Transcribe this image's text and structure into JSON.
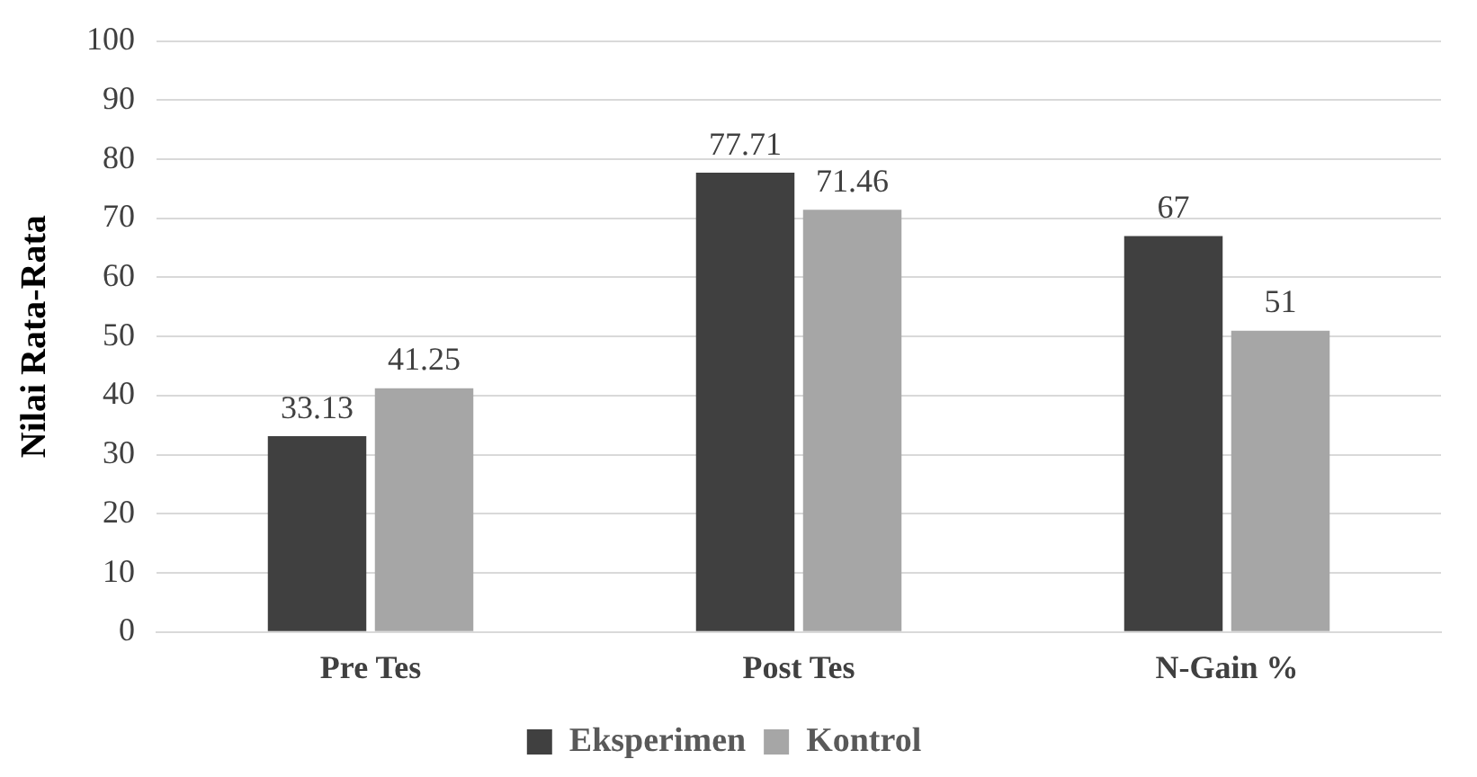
{
  "chart_data": {
    "type": "bar",
    "ylabel": "Nilai Rata-Rata",
    "categories": [
      "Pre Tes",
      "Post Tes",
      "N-Gain %"
    ],
    "series": [
      {
        "name": "Eksperimen",
        "color": "#404040",
        "values": [
          33.13,
          77.71,
          67
        ]
      },
      {
        "name": "Kontrol",
        "color": "#a6a6a6",
        "values": [
          41.25,
          71.46,
          51
        ]
      }
    ],
    "ylim": [
      0,
      100
    ],
    "yticks": [
      0,
      10,
      20,
      30,
      40,
      50,
      60,
      70,
      80,
      90,
      100
    ],
    "grid": "y",
    "legend": "bottom",
    "data_labels": true
  }
}
